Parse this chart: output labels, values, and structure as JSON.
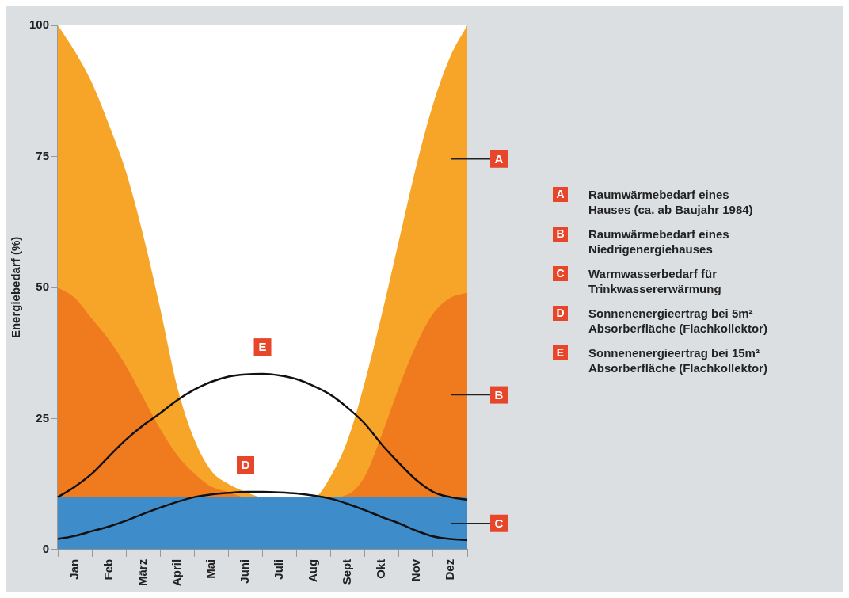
{
  "chart_data": {
    "type": "area",
    "ylabel": "Energiebedarf (%)",
    "categories": [
      null,
      "Jan",
      null,
      "Feb",
      null,
      "März",
      null,
      "April",
      null,
      "Mai",
      null,
      "Juni",
      null,
      "Juli",
      null,
      "Aug",
      null,
      "Sept",
      null,
      "Okt",
      null,
      "Nov",
      null,
      "Dez",
      null
    ],
    "ylim": [
      0,
      100
    ],
    "yticks": [
      0,
      25,
      50,
      75,
      100
    ],
    "series": [
      {
        "color": "#f7a528",
        "values": [
          100,
          95,
          89,
          81,
          72,
          60,
          46,
          31,
          21,
          15,
          12.5,
          11,
          10,
          10,
          10,
          10,
          14,
          21,
          32,
          45,
          59,
          73,
          85,
          94,
          100
        ]
      },
      {
        "color": "#f07a1e",
        "values": [
          50,
          48,
          44,
          40,
          35,
          29,
          23,
          18,
          14.5,
          12,
          11,
          10,
          10,
          10,
          10,
          10,
          10,
          10.5,
          14,
          22,
          31,
          39,
          45,
          48,
          49
        ]
      },
      {
        "color": "#3f8ccb",
        "values": [
          10,
          10,
          10,
          10,
          10,
          10,
          10,
          10,
          10,
          10,
          10,
          10,
          10,
          10,
          10,
          10,
          10,
          10,
          10,
          10,
          10,
          10,
          10,
          10,
          10
        ]
      },
      {
        "type": "line",
        "color": "#111111",
        "values": [
          2,
          2.6,
          3.5,
          4.4,
          5.5,
          6.8,
          8,
          9.1,
          10,
          10.5,
          10.8,
          11,
          11,
          10.9,
          10.7,
          10.3,
          9.7,
          8.7,
          7.5,
          6.2,
          5,
          3.6,
          2.5,
          2,
          1.8
        ]
      },
      {
        "type": "line",
        "color": "#111111",
        "values": [
          10,
          12,
          14.5,
          17.8,
          21,
          23.7,
          26,
          28.5,
          30.5,
          32,
          33,
          33.4,
          33.5,
          33.2,
          32.5,
          31.2,
          29.5,
          27,
          24,
          20,
          16.5,
          13.3,
          11,
          10,
          9.5
        ]
      }
    ],
    "annotations": [
      "A",
      "B",
      "C",
      "D",
      "E",
      "Raumwärmebedarf eines Hauses (ca. ab Baujahr 1984)",
      "Raumwärmebedarf eines Niedrigenergiehauses",
      "Warmwasserbedarf für Trinkwassererwärmung",
      "Sonnenenergieertrag bei 5m² Absorberfläche (Flachkollektor)",
      "Sonnenenergieertrag bei 15m² Absorberfläche (Flachkollektor)"
    ]
  }
}
